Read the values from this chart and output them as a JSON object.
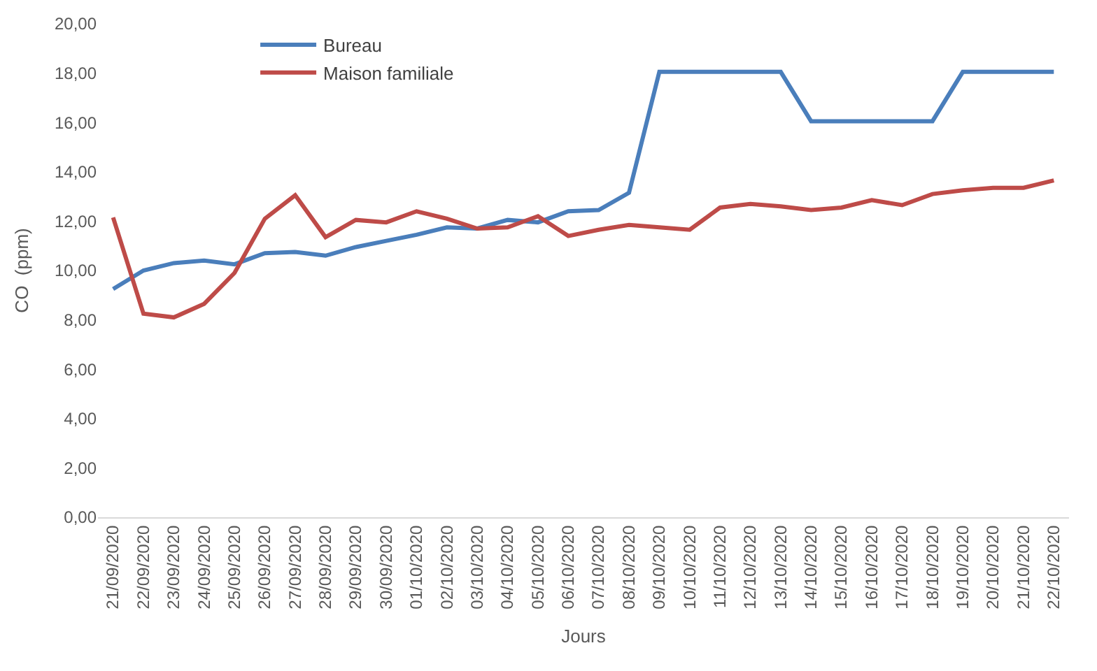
{
  "chart_data": {
    "type": "line",
    "xlabel": "Jours",
    "ylabel": "CO  (ppm)",
    "categories": [
      "21/09/2020",
      "22/09/2020",
      "23/09/2020",
      "24/09/2020",
      "25/09/2020",
      "26/09/2020",
      "27/09/2020",
      "28/09/2020",
      "29/09/2020",
      "30/09/2020",
      "01/10/2020",
      "02/10/2020",
      "03/10/2020",
      "04/10/2020",
      "05/10/2020",
      "06/10/2020",
      "07/10/2020",
      "08/10/2020",
      "09/10/2020",
      "10/10/2020",
      "11/10/2020",
      "12/10/2020",
      "13/10/2020",
      "14/10/2020",
      "15/10/2020",
      "16/10/2020",
      "17/10/2020",
      "18/10/2020",
      "19/10/2020",
      "20/10/2020",
      "21/10/2020",
      "22/10/2020"
    ],
    "series": [
      {
        "name": "Bureau",
        "color": "#4a7ebb",
        "values": [
          9.25,
          10.0,
          10.3,
          10.4,
          10.25,
          10.7,
          10.75,
          10.6,
          10.95,
          11.2,
          11.45,
          11.75,
          11.7,
          12.05,
          11.95,
          12.4,
          12.45,
          13.15,
          18.05,
          18.05,
          18.05,
          18.05,
          18.05,
          16.05,
          16.05,
          16.05,
          16.05,
          16.05,
          18.05,
          18.05,
          18.05,
          18.05
        ]
      },
      {
        "name": "Maison familiale",
        "color": "#be4b48",
        "values": [
          12.15,
          8.25,
          8.1,
          8.65,
          9.9,
          12.1,
          13.05,
          11.35,
          12.05,
          11.95,
          12.4,
          12.1,
          11.7,
          11.75,
          12.2,
          11.4,
          11.65,
          11.85,
          11.75,
          11.65,
          12.55,
          12.7,
          12.6,
          12.45,
          12.55,
          12.85,
          12.65,
          13.1,
          13.25,
          13.35,
          13.35,
          13.65
        ]
      }
    ],
    "ylim": [
      0,
      20
    ],
    "yticks": [
      {
        "value": 0,
        "label": "0,00"
      },
      {
        "value": 2,
        "label": "2,00"
      },
      {
        "value": 4,
        "label": "4,00"
      },
      {
        "value": 6,
        "label": "6,00"
      },
      {
        "value": 8,
        "label": "8,00"
      },
      {
        "value": 10,
        "label": "10,00"
      },
      {
        "value": 12,
        "label": "12,00"
      },
      {
        "value": 14,
        "label": "14,00"
      },
      {
        "value": 16,
        "label": "16,00"
      },
      {
        "value": 18,
        "label": "18,00"
      },
      {
        "value": 20,
        "label": "20,00"
      }
    ],
    "grid": false,
    "legend": "top left",
    "marker": "none",
    "line_style": "solid"
  }
}
